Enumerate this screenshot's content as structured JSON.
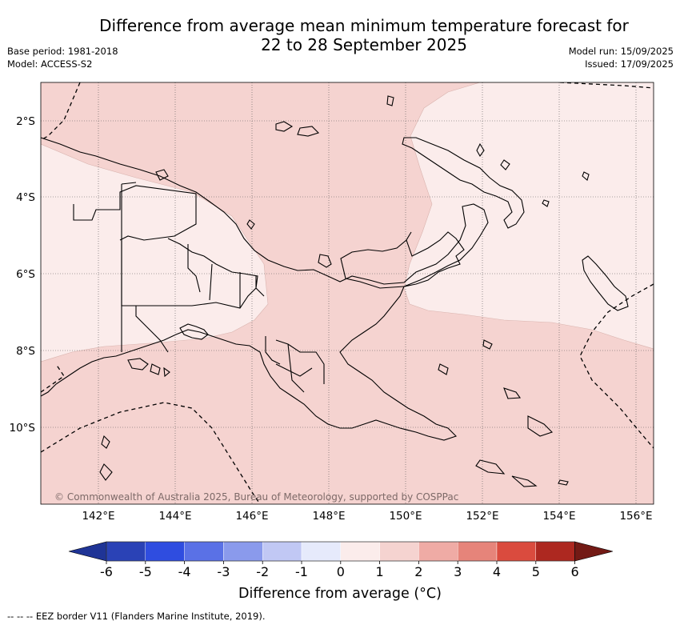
{
  "title_line1": "Difference from average mean minimum temperature forecast for",
  "title_line2": "22 to 28 September 2025",
  "meta_left": {
    "base_period": "Base period: 1981-2018",
    "model": "Model: ACCESS-S2"
  },
  "meta_right": {
    "model_run": "Model run: 15/09/2025",
    "issued": "Issued: 17/09/2025"
  },
  "lat_labels": [
    "2°S",
    "4°S",
    "6°S",
    "8°S",
    "10°S"
  ],
  "lon_labels": [
    "142°E",
    "144°E",
    "146°E",
    "148°E",
    "150°E",
    "152°E",
    "154°E",
    "156°E"
  ],
  "copyright": "© Commonwealth of Australia 2025, Bureau of Meteorology, supported by COSPPac",
  "colorbar": {
    "ticks": [
      "-6",
      "-5",
      "-4",
      "-3",
      "-2",
      "-1",
      "0",
      "1",
      "2",
      "3",
      "4",
      "5",
      "6"
    ],
    "colors": [
      "#1f3496",
      "#2a42b6",
      "#2f4de0",
      "#5a71e6",
      "#8a9aec",
      "#c1c8f4",
      "#e6eafb",
      "#fbeceb",
      "#f5d3d0",
      "#efaba5",
      "#e6847a",
      "#da4b3e",
      "#ad2820",
      "#731a15"
    ],
    "label": "Difference from average (°C)"
  },
  "map_colors": {
    "band_0_1": "#fbeceb",
    "band_1_2": "#f5d3d0"
  },
  "footnote": "--  --  -- EEZ border V11 (Flanders Marine Institute, 2019)."
}
